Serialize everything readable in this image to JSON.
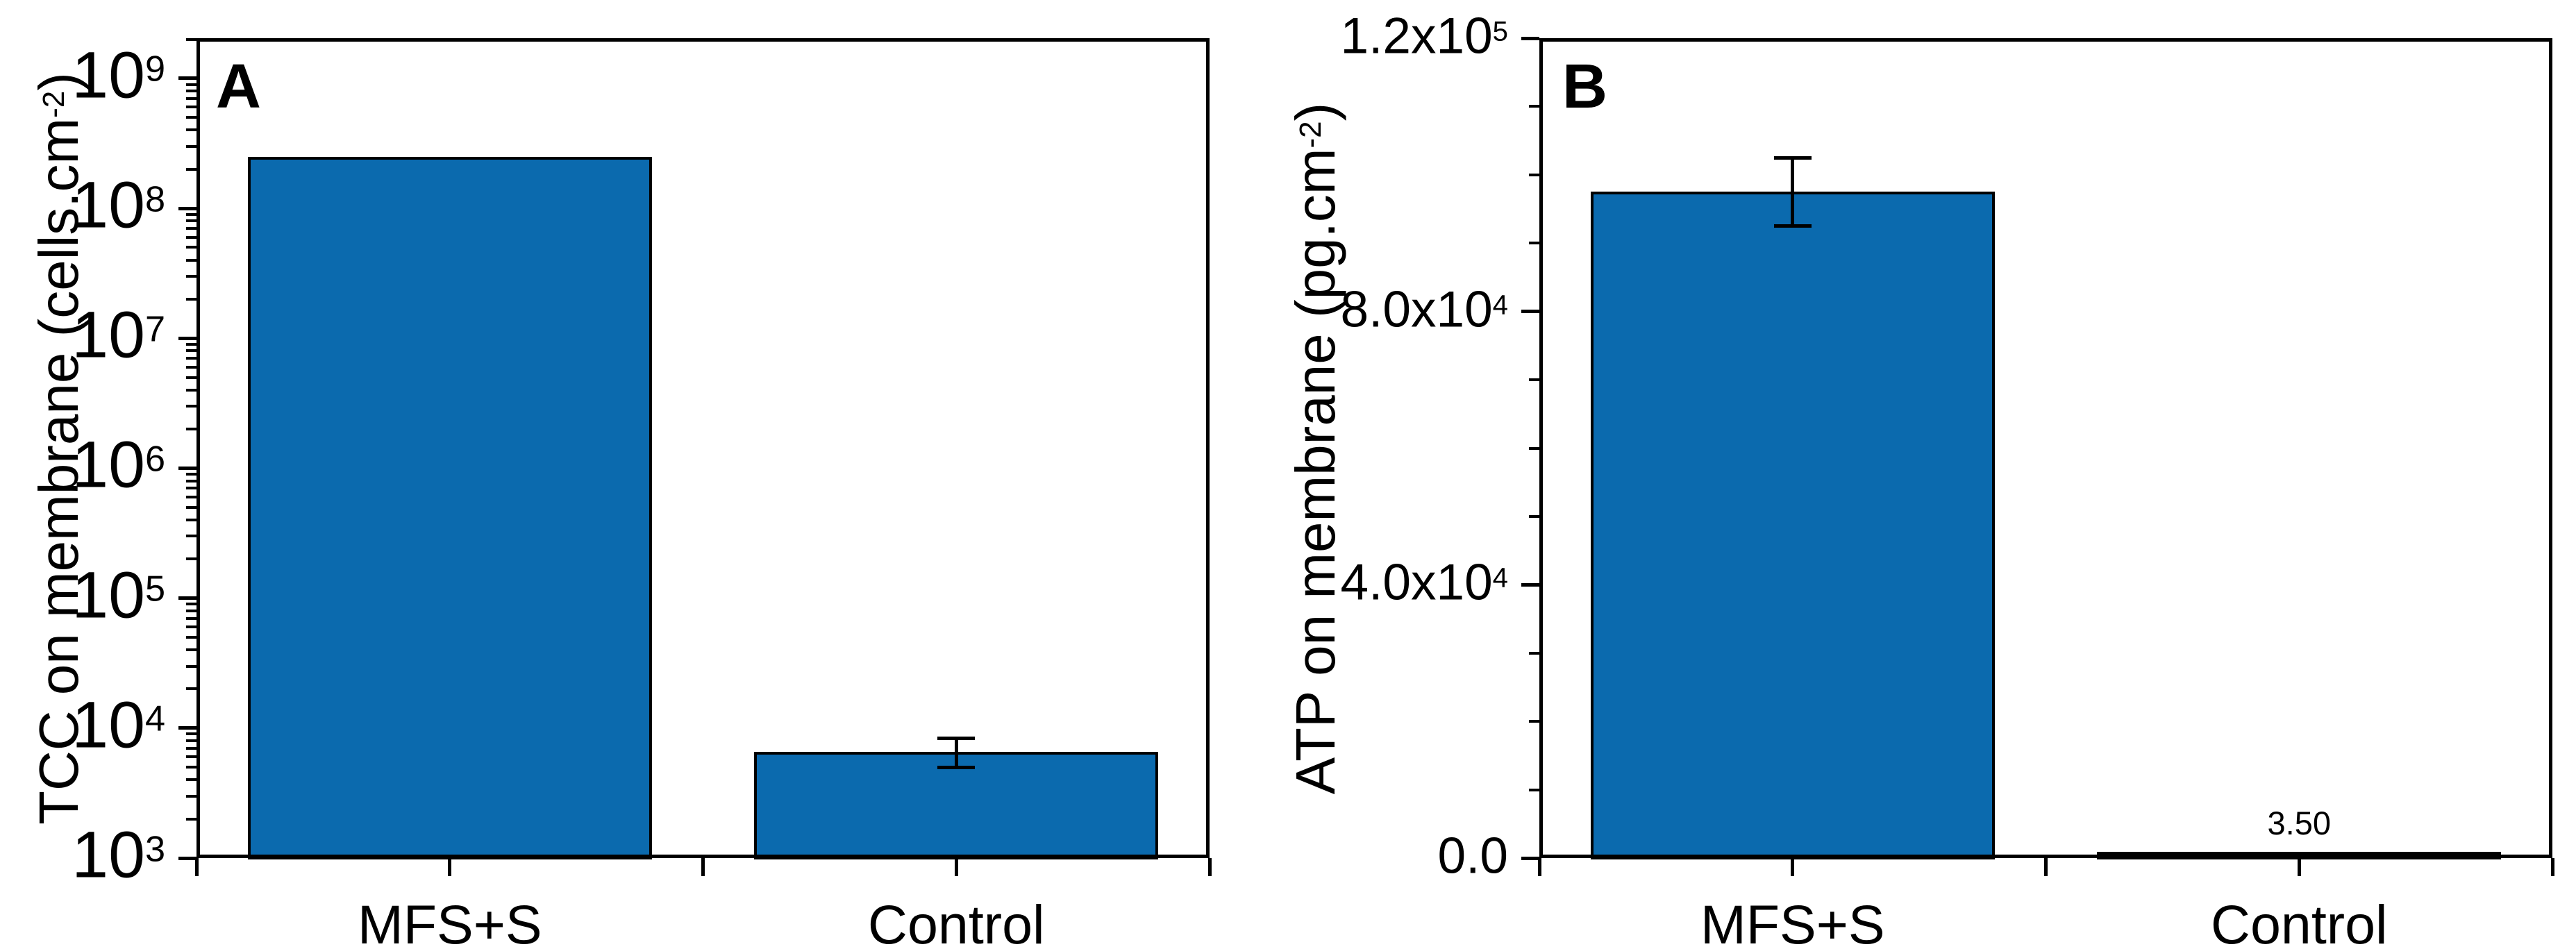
{
  "figure": {
    "background": "#ffffff",
    "bar_fill": "#0b6aae",
    "bar_stroke": "#000000",
    "axis_color": "#000000",
    "text_color": "#000000"
  },
  "chart_data": [
    {
      "type": "bar",
      "panel_label": "A",
      "title": "",
      "xlabel": "",
      "ylabel": "TCC on membrane (cells.cm-2)",
      "ylabel_parts": [
        {
          "text": "TCC on membrane (cells.cm"
        },
        {
          "text": "-2",
          "sup": true
        },
        {
          "text": ")"
        }
      ],
      "yscale": "log",
      "ylim": [
        1000,
        2040000000
      ],
      "grid": false,
      "legend_position": "none",
      "ymajor_ticks": [
        1000,
        10000,
        100000,
        1000000,
        10000000,
        100000000,
        1000000000
      ],
      "ytick_labels": [
        {
          "base": "10",
          "exp": "3"
        },
        {
          "base": "10",
          "exp": "4"
        },
        {
          "base": "10",
          "exp": "5"
        },
        {
          "base": "10",
          "exp": "6"
        },
        {
          "base": "10",
          "exp": "7"
        },
        {
          "base": "10",
          "exp": "8"
        },
        {
          "base": "10",
          "exp": "9"
        }
      ],
      "categories": [
        "MFS+S",
        "Control"
      ],
      "values": [
        250000000,
        6600
      ],
      "errors": [
        null,
        {
          "plus": 1700,
          "minus": 1600
        }
      ],
      "value_labels": [
        null,
        null
      ]
    },
    {
      "type": "bar",
      "panel_label": "B",
      "title": "",
      "xlabel": "",
      "ylabel": "ATP on membrane (pg.cm-2)",
      "ylabel_parts": [
        {
          "text": "ATP on membrane (pg.cm"
        },
        {
          "text": "-2",
          "sup": true
        },
        {
          "text": ")"
        }
      ],
      "yscale": "linear",
      "ylim": [
        0,
        120000
      ],
      "yminor_step": 10000,
      "grid": false,
      "legend_position": "none",
      "ymajor_ticks": [
        0,
        40000,
        80000,
        120000
      ],
      "ytick_labels": [
        {
          "base": "0.0",
          "exp": ""
        },
        {
          "base": "4.0x10",
          "exp": "4"
        },
        {
          "base": "8.0x10",
          "exp": "4"
        },
        {
          "base": "1.2x10",
          "exp": "5"
        }
      ],
      "categories": [
        "MFS+S",
        "Control"
      ],
      "values": [
        97500,
        3.5
      ],
      "errors": [
        {
          "plus": 5000,
          "minus": 5000
        },
        null
      ],
      "value_labels": [
        null,
        "3.50"
      ]
    }
  ]
}
